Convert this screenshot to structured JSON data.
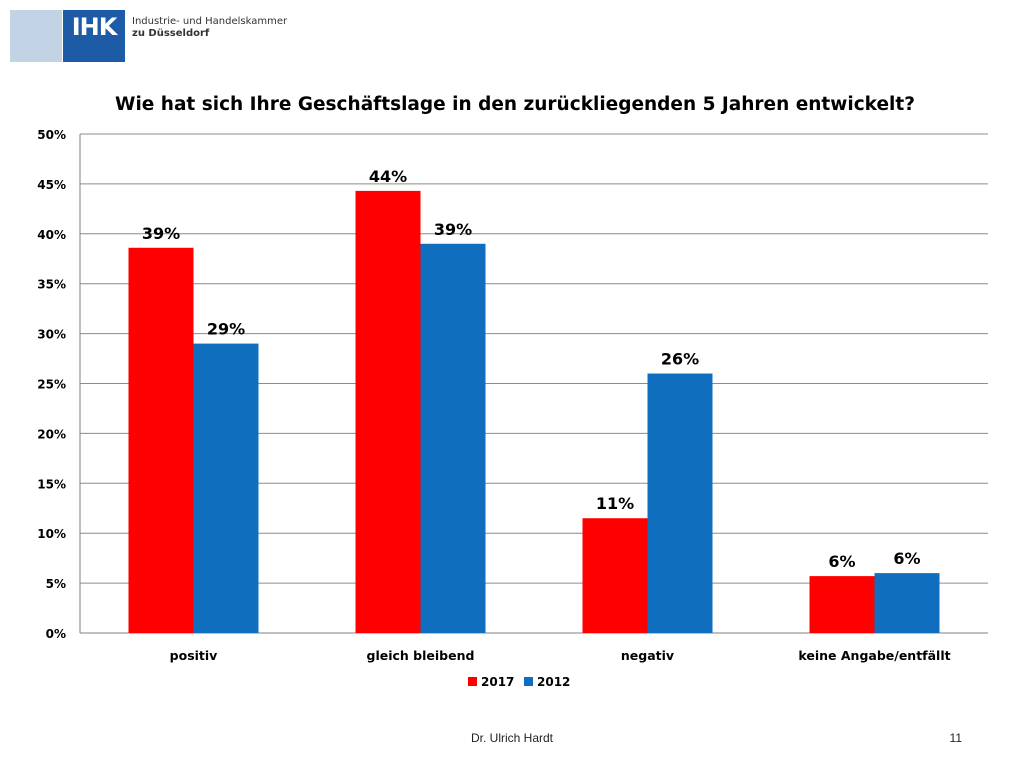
{
  "header": {
    "logo_mark": "IHK",
    "logo_line1": "Industrie- und Handelskammer",
    "logo_line2": "zu Düsseldorf"
  },
  "chart_data": {
    "type": "bar",
    "title": "Wie hat sich Ihre Geschäftslage in den zurückliegenden 5 Jahren entwickelt?",
    "xlabel": "",
    "ylabel": "",
    "categories": [
      "positiv",
      "gleich bleibend",
      "negativ",
      "keine Angabe/entfällt"
    ],
    "series": [
      {
        "name": "2017",
        "color": "#ff0000",
        "values": [
          0.386,
          0.443,
          0.115,
          0.057
        ],
        "labels": [
          "39%",
          "44%",
          "11%",
          "6%"
        ]
      },
      {
        "name": "2012",
        "color": "#0f6ebe",
        "values": [
          0.29,
          0.39,
          0.26,
          0.06
        ],
        "labels": [
          "29%",
          "39%",
          "26%",
          "6%"
        ]
      }
    ],
    "ylim": [
      0,
      0.5
    ],
    "yticks": [
      0,
      0.05,
      0.1,
      0.15,
      0.2,
      0.25,
      0.3,
      0.35,
      0.4,
      0.45,
      0.5
    ],
    "ytick_labels": [
      "0%",
      "5%",
      "10%",
      "15%",
      "20%",
      "25%",
      "30%",
      "35%",
      "40%",
      "45%",
      "50%"
    ],
    "grid": true,
    "legend_position": "bottom"
  },
  "footer": {
    "author": "Dr. Ulrich Hardt",
    "page_number": "11"
  }
}
